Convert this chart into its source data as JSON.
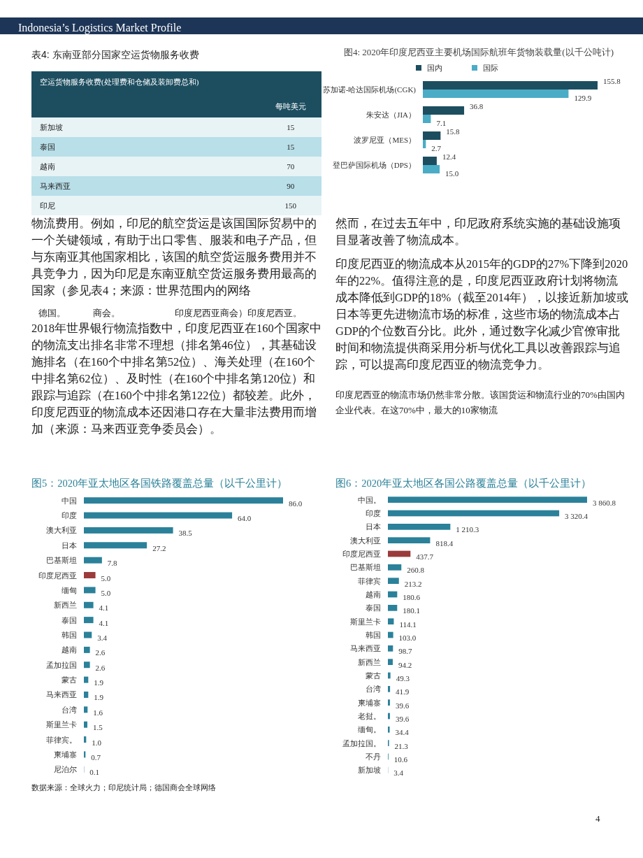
{
  "chart_data": [
    {
      "type": "other",
      "title": "Indonesia’s Logistics Market Profile",
      "annotations": [
        "4"
      ]
    },
    {
      "type": "other",
      "title": "表4: 东南亚部分国家空运货物服务收费",
      "xlabel": "空运货物服务收费(处理费和仓储及装卸费总和)",
      "ylabel": "每吨美元",
      "categories": [
        "新加坡",
        "泰国",
        "越南",
        "马来西亚",
        "印尼"
      ],
      "values": [
        15,
        15,
        70,
        90,
        150
      ],
      "data_labels": true
    },
    {
      "type": "bar",
      "orientation": "horizontal",
      "title": "图4: 2020年印度尼西亚主要机场国际航班年货物装载量(以千公吨计)",
      "categories": [
        "苏加诺-哈达国际机场(CGK)",
        "朱安达（JIA）",
        "波罗尼亚（MES）",
        "登巴萨国际机场（DPS）"
      ],
      "legend": "top",
      "series": [
        {
          "name": "国内",
          "color": "#1d4e60",
          "values": [
            155.8,
            36.8,
            15.8,
            12.4
          ],
          "value_labels": [
            "155.8",
            "36.8",
            "15.8",
            "12.4"
          ]
        },
        {
          "name": "国际",
          "color": "#4bacc6",
          "values": [
            129.9,
            7.1,
            2.7,
            15.0
          ],
          "value_labels": [
            "129.9",
            "7.1",
            "2.7",
            "15.0"
          ]
        }
      ]
    },
    {
      "type": "other",
      "annotations": [
        "物流费用。例如，印尼的航空货运是该国国际贸易中的一个关键领域，有助于出口零售、服装和电子产品，但与东南亚其他国家相比，该国的航空货运服务费用并不具竞争力，因为印尼是东南亚航空货运服务费用最高的国家（参见表4；来源：世界范围内的网络",
        "德国。　　　商会。　　　　　　印度尼西亚商会）印度尼西亚。",
        "2018年世界银行物流指数中，印度尼西亚在160个国家中的物流支出排名非常不理想（排名第46位），其基础设施排名（在160个中排名第52位）、海关处理（在160个中排名第62位）、及时性（在160个中排名第120位）和跟踪与追踪（在160个中排名第122位）都较差。此外，印度尼西亚的物流成本还因港口存在大量非法费用而增加（来源：马来西亚竞争委员会）。"
      ]
    },
    {
      "type": "other",
      "annotations": [
        "然而，在过去五年中，印尼政府系统实施的基础设施项目显著改善了物流成本。",
        "印度尼西亚的物流成本从2015年的GDP的27%下降到2020年的22%。值得注意的是，印度尼西亚政府计划将物流成本降低到GDP的18%（截至2014年），以接近新加坡或日本等更先进物流市场的标准，这些市场的物流成本占GDP的个位数百分比。此外，通过数字化减少官僚审批时间和物流提供商采用分析与优化工具以改善跟踪与追踪，可以提高印度尼西亚的物流竞争力。",
        "印度尼西亚的物流市场仍然非常分散。该国货运和物流行业的70%由国内企业代表。在这70%中，最大的10家物流"
      ]
    },
    {
      "type": "bar",
      "orientation": "horizontal",
      "title": "图5：2020年亚太地区各国铁路覆盖总量（以千公里计）",
      "categories": [
        "中国",
        "印度",
        "澳大利亚",
        "日本",
        "巴基斯坦",
        "印度尼西亚",
        "缅甸",
        "新西兰",
        "泰国",
        "韩国",
        "越南",
        "孟加拉国",
        "蒙古",
        "马来西亚",
        "台湾",
        "斯里兰卡",
        "菲律宾。",
        "柬埔寨",
        "尼泊尔"
      ],
      "values": [
        86.0,
        64.0,
        38.5,
        27.2,
        7.8,
        5.0,
        5.0,
        4.1,
        4.1,
        3.4,
        2.6,
        2.6,
        1.9,
        1.9,
        1.6,
        1.5,
        1.0,
        0.7,
        0.1
      ],
      "value_labels": [
        "86.0",
        "64.0",
        "38.5",
        "27.2",
        "7.8",
        "5.0",
        "5.0",
        "4.1",
        "4.1",
        "3.4",
        "2.6",
        "2.6",
        "1.9",
        "1.9",
        "1.6",
        "1.5",
        "1.0",
        "0.7",
        "0.1"
      ],
      "colors": [
        "#2b8199",
        "#2b8199",
        "#2b8199",
        "#2b8199",
        "#2b8199",
        "#9b3b3b",
        "#2b8199",
        "#2b8199",
        "#2b8199",
        "#2b8199",
        "#2b8199",
        "#2b8199",
        "#2b8199",
        "#2b8199",
        "#2b8199",
        "#2b8199",
        "#2b8199",
        "#2b8199",
        "#2b8199"
      ],
      "annotations": [
        "数据来源：全球火力；印尼统计局；德国商会全球网络"
      ]
    },
    {
      "type": "bar",
      "orientation": "horizontal",
      "title": "图6：2020年亚太地区各国公路覆盖总量（以千公里计）",
      "categories": [
        "中国。",
        "印度",
        "日本",
        "澳大利亚",
        "印度尼西亚",
        "巴基斯坦",
        "菲律宾",
        "越南",
        "泰国",
        "斯里兰卡",
        "韩国",
        "马来西亚",
        "新西兰",
        "蒙古",
        "台湾",
        "柬埔寨",
        "老挝。",
        "缅甸。",
        "孟加拉国。",
        "不丹",
        "新加坡"
      ],
      "values": [
        3860.8,
        3320.4,
        1210.3,
        818.4,
        437.7,
        260.8,
        213.2,
        180.6,
        180.1,
        114.1,
        103.0,
        98.7,
        94.2,
        49.3,
        41.9,
        39.6,
        39.6,
        34.4,
        21.3,
        10.6,
        3.4
      ],
      "value_labels": [
        "3 860.8",
        "3 320.4",
        "1 210.3",
        "818.4",
        "437.7",
        "260.8",
        "213.2",
        "180.6",
        "180.1",
        "114.1",
        "103.0",
        "98.7",
        "94.2",
        "49.3",
        "41.9",
        "39.6",
        "39.6",
        "34.4",
        "21.3",
        "10.6",
        "3.4"
      ],
      "colors": [
        "#2b8199",
        "#2b8199",
        "#2b8199",
        "#2b8199",
        "#9b3b3b",
        "#2b8199",
        "#2b8199",
        "#2b8199",
        "#2b8199",
        "#2b8199",
        "#2b8199",
        "#2b8199",
        "#2b8199",
        "#2b8199",
        "#2b8199",
        "#2b8199",
        "#2b8199",
        "#2b8199",
        "#2b8199",
        "#2b8199",
        "#2b8199"
      ]
    }
  ]
}
